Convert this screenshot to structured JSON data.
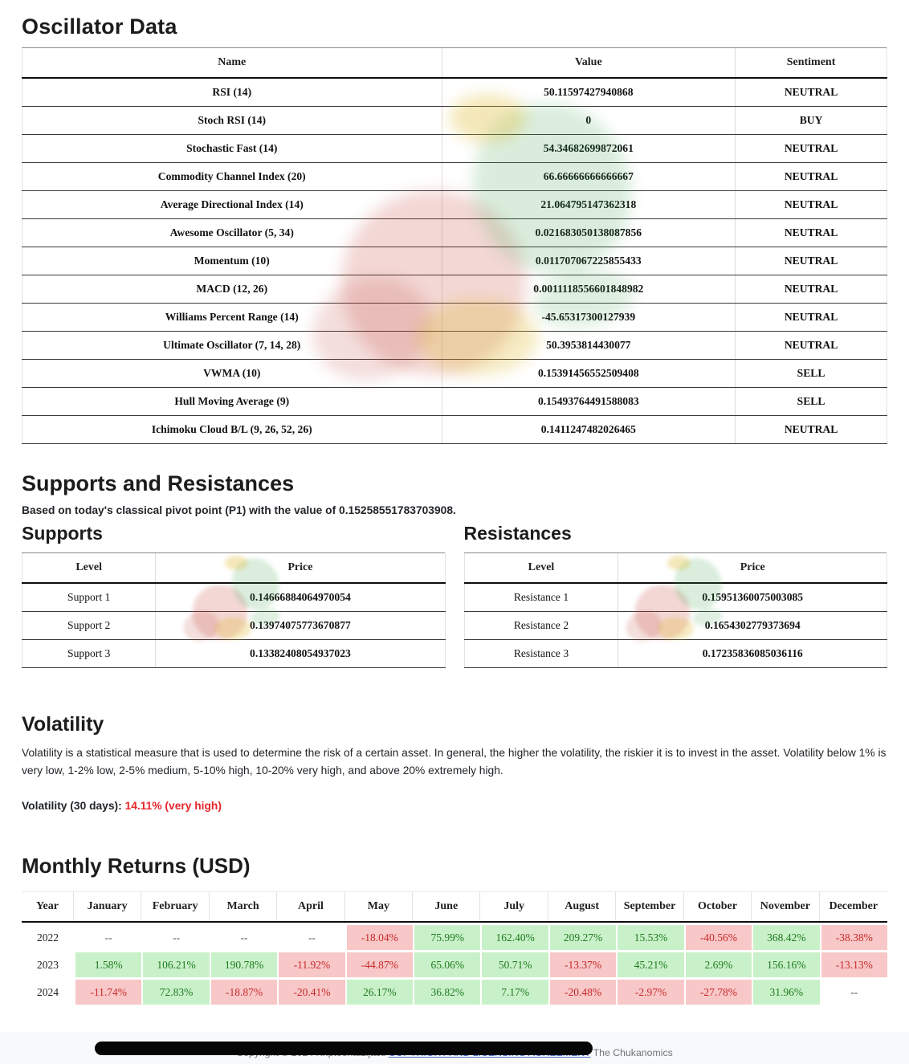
{
  "colors": {
    "buy_green": "#0a8f0a",
    "sell_red": "#e60000",
    "monthly_pos_bg": "#c9f1c9",
    "monthly_neg_bg": "#f8c7c7",
    "volatility_red": "#e8252a",
    "link_blue": "#4a6bc5",
    "footer_bg": "#f8f9fa",
    "redaction_bar": "#060606"
  },
  "oscillator": {
    "title": "Oscillator Data",
    "headers": [
      "Name",
      "Value",
      "Sentiment"
    ],
    "rows": [
      {
        "name": "RSI (14)",
        "value": "50.11597427940868",
        "sentiment": "NEUTRAL",
        "tone": "neutral"
      },
      {
        "name": "Stoch RSI (14)",
        "value": "0",
        "sentiment": "BUY",
        "tone": "buy"
      },
      {
        "name": "Stochastic Fast (14)",
        "value": "54.34682699872061",
        "sentiment": "NEUTRAL",
        "tone": "neutral"
      },
      {
        "name": "Commodity Channel Index (20)",
        "value": "66.66666666666667",
        "sentiment": "NEUTRAL",
        "tone": "neutral"
      },
      {
        "name": "Average Directional Index (14)",
        "value": "21.064795147362318",
        "sentiment": "NEUTRAL",
        "tone": "neutral"
      },
      {
        "name": "Awesome Oscillator (5, 34)",
        "value": "0.021683050138087856",
        "sentiment": "NEUTRAL",
        "tone": "neutral"
      },
      {
        "name": "Momentum (10)",
        "value": "0.011707067225855433",
        "sentiment": "NEUTRAL",
        "tone": "neutral"
      },
      {
        "name": "MACD (12, 26)",
        "value": "0.0011118556601848982",
        "sentiment": "NEUTRAL",
        "tone": "neutral"
      },
      {
        "name": "Williams Percent Range (14)",
        "value": "-45.65317300127939",
        "sentiment": "NEUTRAL",
        "tone": "neutral"
      },
      {
        "name": "Ultimate Oscillator (7, 14, 28)",
        "value": "50.3953814430077",
        "sentiment": "NEUTRAL",
        "tone": "neutral"
      },
      {
        "name": "VWMA (10)",
        "value": "0.15391456552509408",
        "sentiment": "SELL",
        "tone": "sell"
      },
      {
        "name": "Hull Moving Average (9)",
        "value": "0.15493764491588083",
        "sentiment": "SELL",
        "tone": "sell"
      },
      {
        "name": "Ichimoku Cloud B/L (9, 26, 52, 26)",
        "value": "0.1411247482026465",
        "sentiment": "NEUTRAL",
        "tone": "neutral"
      }
    ]
  },
  "supports_resistances": {
    "title": "Supports and Resistances",
    "subtitle": "Based on today's classical pivot point (P1) with the value of 0.15258551783703908.",
    "supports": {
      "title": "Supports",
      "headers": [
        "Level",
        "Price"
      ],
      "rows": [
        {
          "level": "Support 1",
          "price": "0.14666884064970054"
        },
        {
          "level": "Support 2",
          "price": "0.13974075773670877"
        },
        {
          "level": "Support 3",
          "price": "0.13382408054937023"
        }
      ]
    },
    "resistances": {
      "title": "Resistances",
      "headers": [
        "Level",
        "Price"
      ],
      "rows": [
        {
          "level": "Resistance 1",
          "price": "0.15951360075003085"
        },
        {
          "level": "Resistance 2",
          "price": "0.1654302779373694"
        },
        {
          "level": "Resistance 3",
          "price": "0.17235836085036116"
        }
      ]
    }
  },
  "volatility": {
    "title": "Volatility",
    "description": "Volatility is a statistical measure that is used to determine the risk of a certain asset. In general, the higher the volatility, the riskier it is to invest in the asset. Volatility below 1% is very low, 1-2% low, 2-5% medium, 5-10% high, 10-20% very high, and above 20% extremely high.",
    "label": "Volatility (30 days): ",
    "value": "14.11% (very high)"
  },
  "monthly": {
    "title": "Monthly Returns (USD)",
    "headers": [
      "Year",
      "January",
      "February",
      "March",
      "April",
      "May",
      "June",
      "July",
      "August",
      "September",
      "October",
      "November",
      "December"
    ],
    "rows": [
      {
        "year": "2022",
        "values": [
          "--",
          "--",
          "--",
          "--",
          "-18.04%",
          "75.99%",
          "162.40%",
          "209.27%",
          "15.53%",
          "-40.56%",
          "368.42%",
          "-38.38%"
        ]
      },
      {
        "year": "2023",
        "values": [
          "1.58%",
          "106.21%",
          "190.78%",
          "-11.92%",
          "-44.87%",
          "65.06%",
          "50.71%",
          "-13.37%",
          "45.21%",
          "2.69%",
          "156.16%",
          "-13.13%"
        ]
      },
      {
        "year": "2024",
        "values": [
          "-11.74%",
          "72.83%",
          "-18.87%",
          "-20.41%",
          "26.17%",
          "36.82%",
          "7.17%",
          "-20.48%",
          "-2.97%",
          "-27.78%",
          "31.96%",
          "--"
        ]
      }
    ]
  },
  "chart_data": {
    "type": "table",
    "title": "Monthly Returns (USD)",
    "categories": [
      "January",
      "February",
      "March",
      "April",
      "May",
      "June",
      "July",
      "August",
      "September",
      "October",
      "November",
      "December"
    ],
    "series": [
      {
        "name": "2022",
        "values": [
          null,
          null,
          null,
          null,
          -18.04,
          75.99,
          162.4,
          209.27,
          15.53,
          -40.56,
          368.42,
          -38.38
        ]
      },
      {
        "name": "2023",
        "values": [
          1.58,
          106.21,
          190.78,
          -11.92,
          -44.87,
          65.06,
          50.71,
          -13.37,
          45.21,
          2.69,
          156.16,
          -13.13
        ]
      },
      {
        "name": "2024",
        "values": [
          -11.74,
          72.83,
          -18.87,
          -20.41,
          26.17,
          36.82,
          7.17,
          -20.48,
          -2.97,
          -27.78,
          31.96,
          null
        ]
      }
    ]
  },
  "footer": {
    "copyright_prefix": "Copyright © 2024 Kriptoentuzijasti ",
    "link_label": "COPYRIGHT AND LICENSING AGREEMENT",
    "suffix": " The Chukanomics"
  }
}
